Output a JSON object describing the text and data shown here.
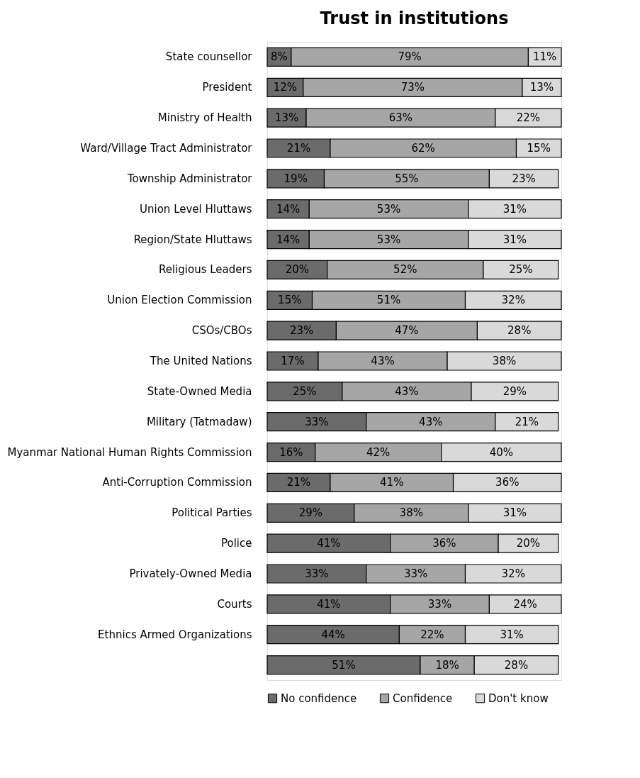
{
  "chart_data": {
    "type": "bar",
    "orientation": "horizontal",
    "stacked": true,
    "title": "Trust in institutions",
    "categories": [
      "State counsellor",
      "President",
      "Ministry of Health",
      "Ward/Village Tract Administrator",
      "Township Administrator",
      "Union Level Hluttaws",
      "Region/State Hluttaws",
      "Religious Leaders",
      "Union Election Commission",
      "CSOs/CBOs",
      "The United Nations",
      "State-Owned Media",
      "Military (Tatmadaw)",
      "Myanmar National Human Rights Commission",
      "Anti-Corruption Commission",
      "Political Parties",
      "Police",
      "Privately-Owned Media",
      "Courts",
      "Ethnics Armed Organizations",
      null
    ],
    "series": [
      {
        "name": "No confidence",
        "color": "#6b6b6b",
        "values": [
          8,
          12,
          13,
          21,
          19,
          14,
          14,
          20,
          15,
          23,
          17,
          25,
          33,
          16,
          21,
          29,
          41,
          33,
          41,
          44,
          51
        ],
        "value_labels": [
          "8%",
          "12%",
          "13%",
          "21%",
          "19%",
          "14%",
          "14%",
          "20%",
          "15%",
          "23%",
          "17%",
          "25%",
          "33%",
          "16%",
          "21%",
          "29%",
          "41%",
          "33%",
          "41%",
          "44%",
          "51%"
        ]
      },
      {
        "name": "Confidence",
        "color": "#a6a6a6",
        "values": [
          79,
          73,
          63,
          62,
          55,
          53,
          53,
          52,
          51,
          47,
          43,
          43,
          43,
          42,
          41,
          38,
          36,
          33,
          33,
          22,
          18
        ],
        "value_labels": [
          "79%",
          "73%",
          "63%",
          "62%",
          "55%",
          "53%",
          "53%",
          "52%",
          "51%",
          "47%",
          "43%",
          "43%",
          "43%",
          "42%",
          "41%",
          "38%",
          "36%",
          "33%",
          "33%",
          "22%",
          "18%"
        ]
      },
      {
        "name": "Don't know",
        "color": "#d9d9d9",
        "values": [
          11,
          13,
          22,
          15,
          23,
          31,
          31,
          25,
          32,
          28,
          38,
          29,
          21,
          40,
          36,
          31,
          20,
          32,
          24,
          31,
          28
        ],
        "value_labels": [
          "11%",
          "13%",
          "22%",
          "15%",
          "23%",
          "31%",
          "31%",
          "25%",
          "32%",
          "28%",
          "38%",
          "29%",
          "21%",
          "40%",
          "36%",
          "31%",
          "20%",
          "32%",
          "24%",
          "31%",
          "28%"
        ]
      }
    ],
    "legend": "bottom",
    "tick_labels": "y",
    "grid": false
  }
}
